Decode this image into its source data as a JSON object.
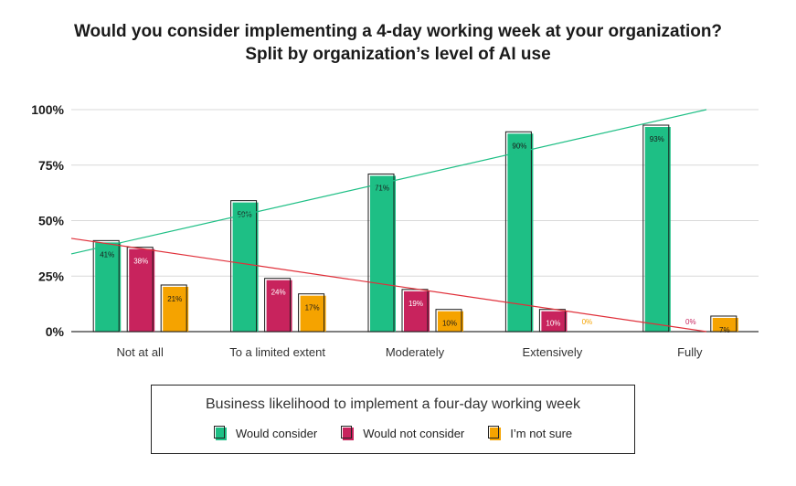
{
  "title": {
    "line1": "Would you consider implementing a 4-day working week at your organization?",
    "line2": "Split by organization’s level of AI use"
  },
  "legend": {
    "title": "Business likelihood to implement a four-day working week"
  },
  "colors": {
    "would_consider": "#1ebf85",
    "would_not_consider": "#c8235d",
    "not_sure": "#f5a300",
    "trend_green": "#1ebf85",
    "trend_red": "#e0303a"
  },
  "chart_data": {
    "type": "bar",
    "categories": [
      "Not at all",
      "To a limited extent",
      "Moderately",
      "Extensively",
      "Fully"
    ],
    "series": [
      {
        "name": "Would consider",
        "values": [
          41,
          59,
          71,
          90,
          93
        ],
        "labels": [
          "41%",
          "59%",
          "71%",
          "90%",
          "93%"
        ]
      },
      {
        "name": "Would not consider",
        "values": [
          38,
          24,
          19,
          10,
          0
        ],
        "labels": [
          "38%",
          "24%",
          "19%",
          "10%",
          "0%"
        ]
      },
      {
        "name": "I’m not sure",
        "values": [
          21,
          17,
          10,
          0,
          7
        ],
        "labels": [
          "21%",
          "17%",
          "10%",
          "0%",
          "7%"
        ]
      }
    ],
    "yticks": [
      "0%",
      "25%",
      "50%",
      "75%",
      "100%"
    ],
    "ylim": [
      0,
      100
    ],
    "trendlines": [
      {
        "series": "Would consider",
        "start": 35,
        "end": 100
      },
      {
        "series": "Would not consider",
        "start": 42,
        "end": 0
      }
    ],
    "grid": true,
    "legend_position": "bottom"
  }
}
